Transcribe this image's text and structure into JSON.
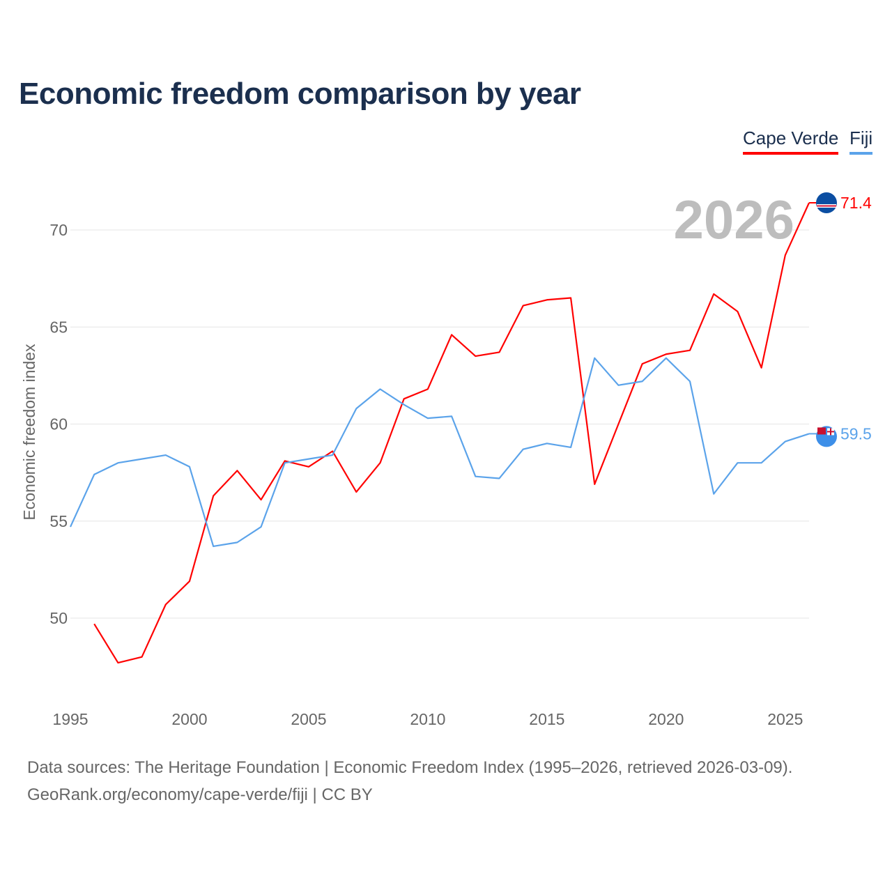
{
  "title": "Economic freedom comparison by year",
  "year_watermark": "2026",
  "source_line1": "Data sources: The Heritage Foundation | Economic Freedom Index (1995–2026, retrieved 2026-03-09).",
  "source_line2": "GeoRank.org/economy/cape-verde/fiji | CC BY",
  "chart_data": {
    "type": "line",
    "title": "Economic freedom comparison by year",
    "xlabel": "",
    "ylabel": "Economic freedom index",
    "xlim": [
      1995,
      2026
    ],
    "ylim": [
      45.5,
      73
    ],
    "xticks": [
      1995,
      2000,
      2005,
      2010,
      2015,
      2020,
      2025
    ],
    "yticks": [
      50,
      55,
      60,
      65,
      70
    ],
    "grid": true,
    "legend_placement": "top-right",
    "series": [
      {
        "name": "Cape Verde",
        "color": "#ff0000",
        "end_label": "71.4",
        "flag": "cape-verde-flag-icon",
        "x": [
          1996,
          1997,
          1998,
          1999,
          2000,
          2001,
          2002,
          2003,
          2004,
          2005,
          2006,
          2007,
          2008,
          2009,
          2010,
          2011,
          2012,
          2013,
          2014,
          2015,
          2016,
          2017,
          2018,
          2019,
          2020,
          2021,
          2022,
          2023,
          2024,
          2025,
          2026
        ],
        "values": [
          49.7,
          47.7,
          48.0,
          50.7,
          51.9,
          56.3,
          57.6,
          56.1,
          58.1,
          57.8,
          58.6,
          56.5,
          58.0,
          61.3,
          61.8,
          64.6,
          63.5,
          63.7,
          66.1,
          66.4,
          66.5,
          56.9,
          60.0,
          63.1,
          63.6,
          63.8,
          66.7,
          65.8,
          62.9,
          68.7,
          71.4
        ]
      },
      {
        "name": "Fiji",
        "color": "#5ba3ea",
        "end_label": "59.5",
        "flag": "fiji-flag-icon",
        "x": [
          1995,
          1996,
          1997,
          1998,
          1999,
          2000,
          2001,
          2002,
          2003,
          2004,
          2005,
          2006,
          2007,
          2008,
          2009,
          2010,
          2011,
          2012,
          2013,
          2014,
          2015,
          2016,
          2017,
          2018,
          2019,
          2020,
          2021,
          2022,
          2023,
          2024,
          2025,
          2026
        ],
        "values": [
          54.7,
          57.4,
          58.0,
          58.2,
          58.4,
          57.8,
          53.7,
          53.9,
          54.7,
          58.0,
          58.2,
          58.4,
          60.8,
          61.8,
          61.0,
          60.3,
          60.4,
          57.3,
          57.2,
          58.7,
          59.0,
          58.8,
          63.4,
          62.0,
          62.2,
          63.4,
          62.2,
          56.4,
          58.0,
          58.0,
          59.1,
          59.5
        ]
      }
    ]
  }
}
